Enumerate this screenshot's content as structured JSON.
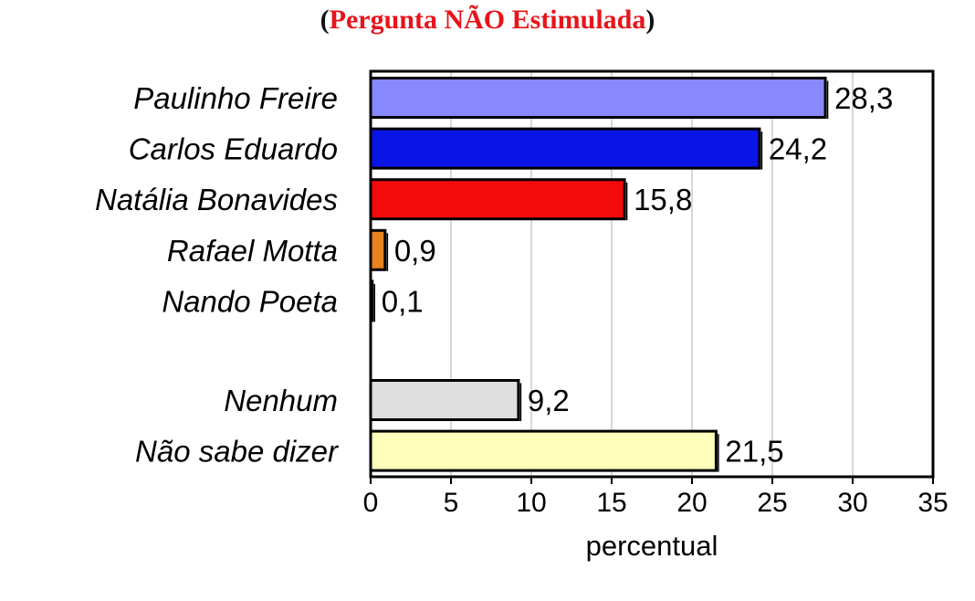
{
  "title": {
    "open": "(",
    "text": "Pergunta NÃO Estimulada",
    "close": ")"
  },
  "colors": {
    "title_text": "#e8141b",
    "axis": "#000000",
    "grid": "#b0b0b0"
  },
  "chart_data": {
    "type": "bar",
    "orientation": "horizontal",
    "categories": [
      "Paulinho Freire",
      "Carlos Eduardo",
      "Natália Bonavides",
      "Rafael Motta",
      "Nando Poeta",
      "Nenhum",
      "Não sabe dizer"
    ],
    "values": [
      28.3,
      24.2,
      15.8,
      0.9,
      0.1,
      9.2,
      21.5
    ],
    "value_labels": [
      "28,3",
      "24,2",
      "15,8",
      "0,9",
      "0,1",
      "9,2",
      "21,5"
    ],
    "bar_colors": [
      "#8888ff",
      "#0a14e6",
      "#f50a0a",
      "#e8821e",
      "#1a1a1a",
      "#dedede",
      "#ffffbb"
    ],
    "gap_after_index": 4,
    "xlabel": "percentual",
    "ylabel": "",
    "xlim": [
      0,
      35
    ],
    "xticks": [
      "0",
      "5",
      "10",
      "15",
      "20",
      "25",
      "30",
      "35"
    ],
    "xtick_values": [
      0,
      5,
      10,
      15,
      20,
      25,
      30,
      35
    ],
    "grid": "vertical"
  }
}
